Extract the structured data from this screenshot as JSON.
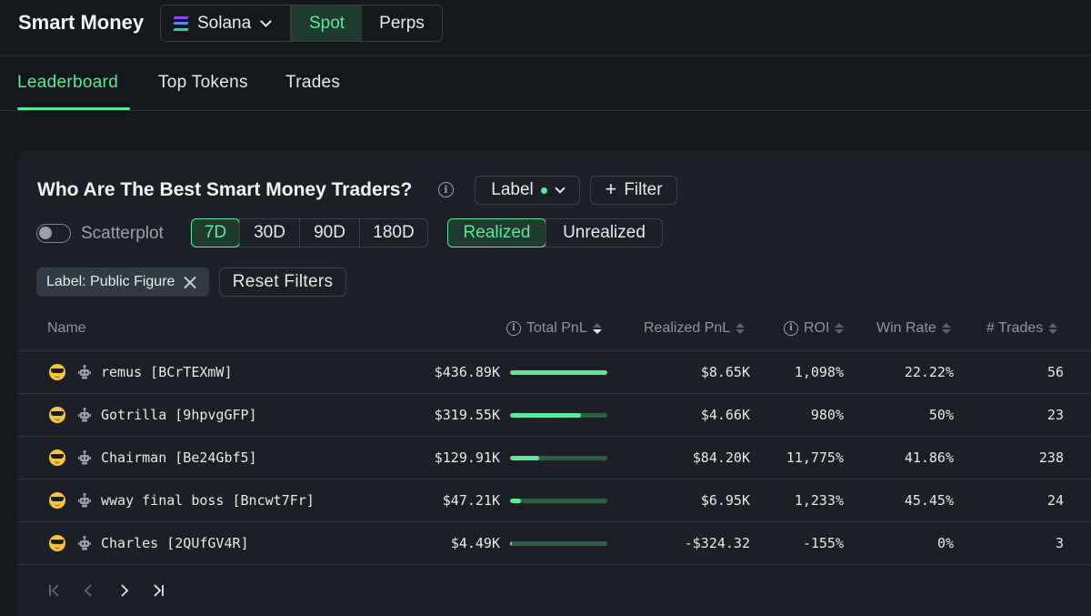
{
  "header": {
    "title": "Smart Money",
    "chain": "Solana",
    "market_tabs": [
      "Spot",
      "Perps"
    ],
    "active_market": "Spot"
  },
  "nav_tabs": [
    "Leaderboard",
    "Top Tokens",
    "Trades"
  ],
  "active_tab": "Leaderboard",
  "card": {
    "title": "Who Are The Best Smart Money Traders?",
    "label_button": "Label",
    "filter_button": "Filter",
    "scatterplot_label": "Scatterplot",
    "scatterplot_on": false,
    "periods": [
      "7D",
      "30D",
      "90D",
      "180D"
    ],
    "active_period": "7D",
    "pnl_modes": [
      "Realized",
      "Unrealized"
    ],
    "active_pnl_mode": "Realized",
    "active_filter_chip": "Label: Public Figure",
    "reset_filters": "Reset Filters"
  },
  "table": {
    "columns": {
      "name": "Name",
      "total_pnl": "Total PnL",
      "realized_pnl": "Realized PnL",
      "roi": "ROI",
      "win_rate": "Win Rate",
      "trades": "# Trades"
    },
    "sorted_by": "Total PnL",
    "rows": [
      {
        "name": "remus [BCrTEXmW]",
        "total_pnl": "$436.89K",
        "pnl_bar_fraction": 1.0,
        "realized_pnl": "$8.65K",
        "roi": "1,098%",
        "win_rate": "22.22%",
        "trades": "56"
      },
      {
        "name": "Gotrilla [9hpvgGFP]",
        "total_pnl": "$319.55K",
        "pnl_bar_fraction": 0.73,
        "realized_pnl": "$4.66K",
        "roi": "980%",
        "win_rate": "50%",
        "trades": "23"
      },
      {
        "name": "Chairman [Be24Gbf5]",
        "total_pnl": "$129.91K",
        "pnl_bar_fraction": 0.3,
        "realized_pnl": "$84.20K",
        "roi": "11,775%",
        "win_rate": "41.86%",
        "trades": "238"
      },
      {
        "name": "wway final boss [Bncwt7Fr]",
        "total_pnl": "$47.21K",
        "pnl_bar_fraction": 0.11,
        "realized_pnl": "$6.95K",
        "roi": "1,233%",
        "win_rate": "45.45%",
        "trades": "24"
      },
      {
        "name": "Charles [2QUfGV4R]",
        "total_pnl": "$4.49K",
        "pnl_bar_fraction": 0.01,
        "realized_pnl": "-$324.32",
        "roi": "-155%",
        "win_rate": "0%",
        "trades": "3"
      }
    ]
  },
  "pagination": [
    "first-page-icon",
    "prev-page-icon",
    "next-page-icon",
    "last-page-icon"
  ],
  "colors": {
    "accent": "#5ee89a",
    "background": "#14171c",
    "card": "#1c2026"
  }
}
